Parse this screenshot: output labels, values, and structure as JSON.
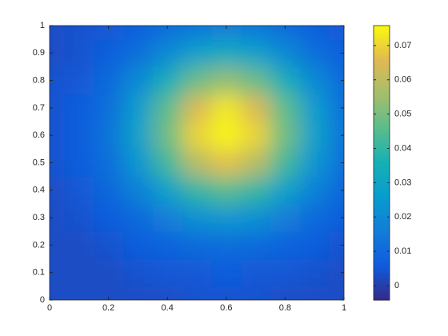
{
  "chart_data": {
    "type": "heatmap",
    "x": [
      0,
      0.1,
      0.2,
      0.3,
      0.4,
      0.5,
      0.6,
      0.7,
      0.8,
      0.9,
      1
    ],
    "y": [
      0,
      0.1,
      0.2,
      0.3,
      0.4,
      0.5,
      0.6,
      0.7,
      0.8,
      0.9,
      1
    ],
    "z": [
      [
        0.003,
        0.003,
        0.003,
        0.003,
        0.003,
        0.004,
        0.004,
        0.004,
        0.003,
        0.003,
        0.003
      ],
      [
        0.003,
        0.003,
        0.003,
        0.004,
        0.005,
        0.005,
        0.006,
        0.005,
        0.005,
        0.004,
        0.003
      ],
      [
        0.003,
        0.003,
        0.004,
        0.006,
        0.008,
        0.01,
        0.011,
        0.01,
        0.008,
        0.006,
        0.004
      ],
      [
        0.003,
        0.004,
        0.006,
        0.01,
        0.016,
        0.022,
        0.024,
        0.022,
        0.016,
        0.01,
        0.006
      ],
      [
        0.003,
        0.005,
        0.009,
        0.017,
        0.028,
        0.04,
        0.045,
        0.04,
        0.028,
        0.017,
        0.009
      ],
      [
        0.004,
        0.006,
        0.012,
        0.024,
        0.042,
        0.059,
        0.067,
        0.059,
        0.042,
        0.024,
        0.012
      ],
      [
        0.004,
        0.006,
        0.013,
        0.028,
        0.049,
        0.07,
        0.075,
        0.07,
        0.049,
        0.028,
        0.013
      ],
      [
        0.004,
        0.006,
        0.012,
        0.026,
        0.046,
        0.065,
        0.073,
        0.065,
        0.046,
        0.026,
        0.012
      ],
      [
        0.004,
        0.005,
        0.01,
        0.02,
        0.034,
        0.048,
        0.054,
        0.048,
        0.034,
        0.02,
        0.01
      ],
      [
        0.003,
        0.004,
        0.007,
        0.012,
        0.02,
        0.028,
        0.032,
        0.028,
        0.02,
        0.012,
        0.007
      ],
      [
        0.003,
        0.004,
        0.005,
        0.007,
        0.011,
        0.014,
        0.016,
        0.014,
        0.011,
        0.007,
        0.005
      ]
    ],
    "xlim": [
      0,
      1
    ],
    "ylim": [
      0,
      1
    ],
    "xticks": [
      0,
      0.2,
      0.4,
      0.6,
      0.8,
      1
    ],
    "yticks": [
      0,
      0.1,
      0.2,
      0.3,
      0.4,
      0.5,
      0.6,
      0.7,
      0.8,
      0.9,
      1
    ],
    "colorbar": {
      "clim": [
        -0.0042,
        0.0758
      ],
      "ticks": [
        0,
        0.01,
        0.02,
        0.03,
        0.04,
        0.05,
        0.06,
        0.07
      ]
    }
  }
}
